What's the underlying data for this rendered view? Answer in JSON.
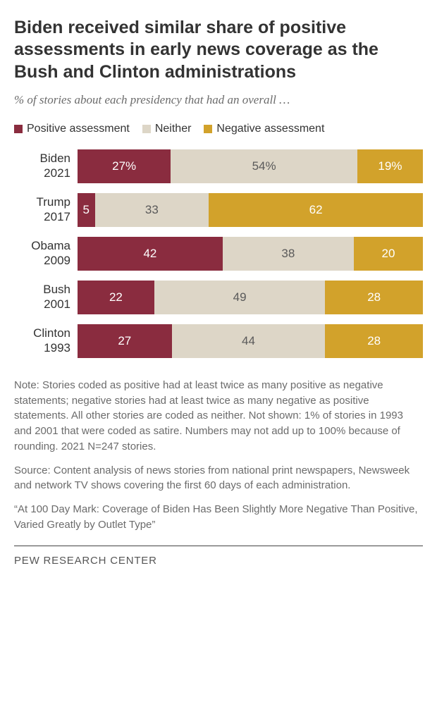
{
  "title": "Biden received similar share of positive assessments in early news coverage as the Bush and Clinton administrations",
  "subtitle": "% of stories about each presidency that had an overall …",
  "colors": {
    "positive": "#8a2c3f",
    "neither": "#ddd6c7",
    "negative": "#d2a22b",
    "positive_text": "#ffffff",
    "neither_text": "#5a5a5a",
    "negative_text": "#ffffff",
    "title_text": "#333333",
    "subtitle_text": "#6b6b6b",
    "background": "#ffffff"
  },
  "legend": {
    "positive": "Positive assessment",
    "neither": "Neither",
    "negative": "Negative assessment"
  },
  "chart": {
    "type": "stacked-bar",
    "value_suffix_first_row": "%",
    "rows": [
      {
        "label_top": "Biden",
        "label_bottom": "2021",
        "positive": 27,
        "neither": 54,
        "negative": 19
      },
      {
        "label_top": "Trump",
        "label_bottom": "2017",
        "positive": 5,
        "neither": 33,
        "negative": 62
      },
      {
        "label_top": "Obama",
        "label_bottom": "2009",
        "positive": 42,
        "neither": 38,
        "negative": 20
      },
      {
        "label_top": "Bush",
        "label_bottom": "2001",
        "positive": 22,
        "neither": 49,
        "negative": 28
      },
      {
        "label_top": "Clinton",
        "label_bottom": "1993",
        "positive": 27,
        "neither": 44,
        "negative": 28
      }
    ]
  },
  "note": "Note: Stories coded as positive had at least twice as many positive as negative statements; negative stories had at least twice as many negative as positive statements. All other stories are coded as neither. Not shown: 1% of stories in 1993 and 2001 that were coded as satire. Numbers may not add up to 100% because of rounding. 2021 N=247 stories.",
  "source": "Source: Content analysis of news stories from national print newspapers, Newsweek and network TV shows covering the first 60 days of each administration.",
  "reference": "“At 100 Day Mark: Coverage of Biden Has Been Slightly More Negative Than Positive, Varied Greatly by Outlet Type”",
  "footer": "PEW RESEARCH CENTER"
}
